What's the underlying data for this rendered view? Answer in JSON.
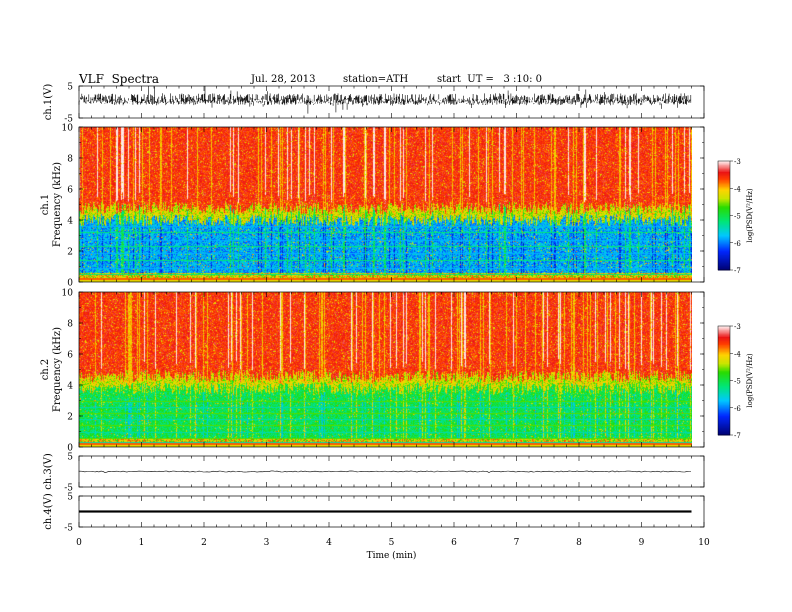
{
  "header": {
    "title": "VLF  Spectra",
    "date": "Jul. 28, 2013",
    "station": "station=ATH",
    "start": "start  UT =   3 :10: 0"
  },
  "chart_data": [
    {
      "type": "line",
      "panel": "ch.1 waveform",
      "ylabel": "ch.1(V)",
      "ylim": [
        -5,
        5
      ],
      "yticks": [
        "5",
        "-5"
      ],
      "xlim": [
        0,
        10
      ]
    },
    {
      "type": "heatmap",
      "panel": "ch.1 spectrogram",
      "ylabel": "Frequency (kHz)",
      "ylabel_prefix": "ch.1",
      "ylim": [
        0,
        10
      ],
      "yticks": [
        "0",
        "2",
        "4",
        "6",
        "8",
        "10"
      ],
      "xlim": [
        0,
        10
      ],
      "data_end_min": 9.8,
      "colorbar": {
        "label": "log(PSD(V²/Hz)",
        "range": [
          -7,
          -3
        ],
        "ticks": [
          "-3",
          "-4",
          "-5",
          "-6",
          "-7"
        ]
      }
    },
    {
      "type": "heatmap",
      "panel": "ch.2 spectrogram",
      "ylabel": "Frequency (kHz)",
      "ylabel_prefix": "ch.2",
      "ylim": [
        0,
        10
      ],
      "yticks": [
        "0",
        "2",
        "4",
        "6",
        "8",
        "10"
      ],
      "xlim": [
        0,
        10
      ],
      "data_end_min": 9.8,
      "colorbar": {
        "label": "log(PSD(V²/Hz)",
        "range": [
          -7,
          -3
        ],
        "ticks": [
          "-3",
          "-4",
          "-5",
          "-6",
          "-7"
        ]
      }
    },
    {
      "type": "line",
      "panel": "ch.3 waveform",
      "ylabel": "ch.3(V)",
      "ylim": [
        -5,
        5
      ],
      "yticks": [
        "5",
        "-5"
      ],
      "xlim": [
        0,
        10
      ]
    },
    {
      "type": "line",
      "panel": "ch.4 waveform",
      "ylabel": "ch.4(V)",
      "ylim": [
        -5,
        5
      ],
      "yticks": [
        "5",
        "-5"
      ],
      "xlim": [
        0,
        10
      ]
    }
  ],
  "xaxis": {
    "label": "Time  (min)",
    "ticks": [
      "0",
      "1",
      "2",
      "3",
      "4",
      "5",
      "6",
      "7",
      "8",
      "9",
      "10"
    ]
  }
}
